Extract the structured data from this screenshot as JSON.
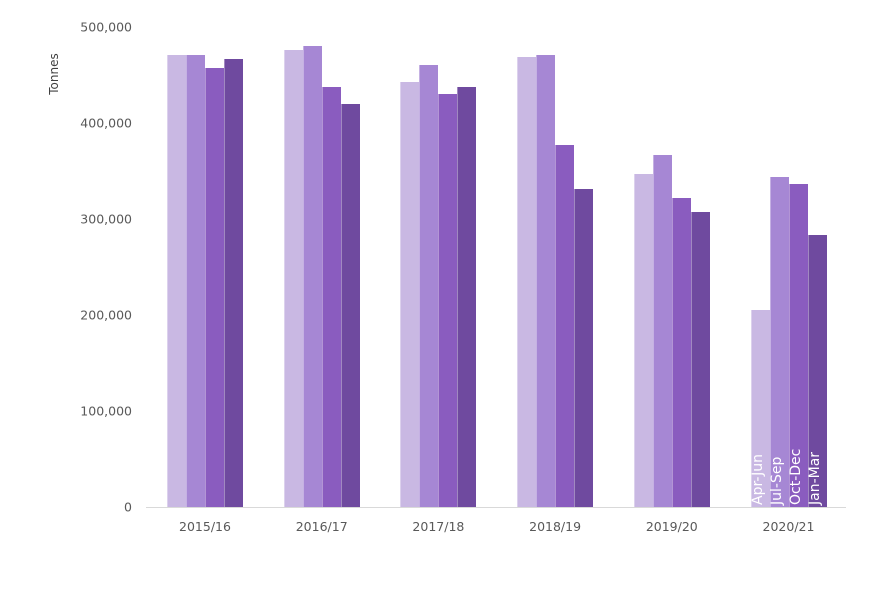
{
  "chart_data": {
    "type": "bar",
    "title": "",
    "xlabel": "",
    "ylabel": "Tonnes",
    "ylim": [
      0,
      500000
    ],
    "yticks": [
      0,
      100000,
      200000,
      300000,
      400000,
      500000
    ],
    "ytick_labels": [
      "0",
      "100,000",
      "200,000",
      "300,000",
      "400,000",
      "500,000"
    ],
    "grid": false,
    "legend_position": "inline labels inside last group bars",
    "categories": [
      "2015/16",
      "2016/17",
      "2017/18",
      "2018/19",
      "2019/20",
      "2020/21"
    ],
    "series": [
      {
        "name": "Apr-Jun",
        "color": "#C9B8E3",
        "values": [
          471000,
          476000,
          443000,
          469000,
          347000,
          205000
        ]
      },
      {
        "name": "Jul-Sep",
        "color": "#A687D4",
        "values": [
          471000,
          480000,
          460000,
          471000,
          367000,
          344000
        ]
      },
      {
        "name": "Oct-Dec",
        "color": "#8A5CBF",
        "values": [
          457000,
          437000,
          430000,
          377000,
          322000,
          336000
        ]
      },
      {
        "name": "Jan-Mar",
        "color": "#6F4A9F",
        "values": [
          467000,
          420000,
          438000,
          331000,
          307000,
          283000
        ]
      }
    ]
  }
}
